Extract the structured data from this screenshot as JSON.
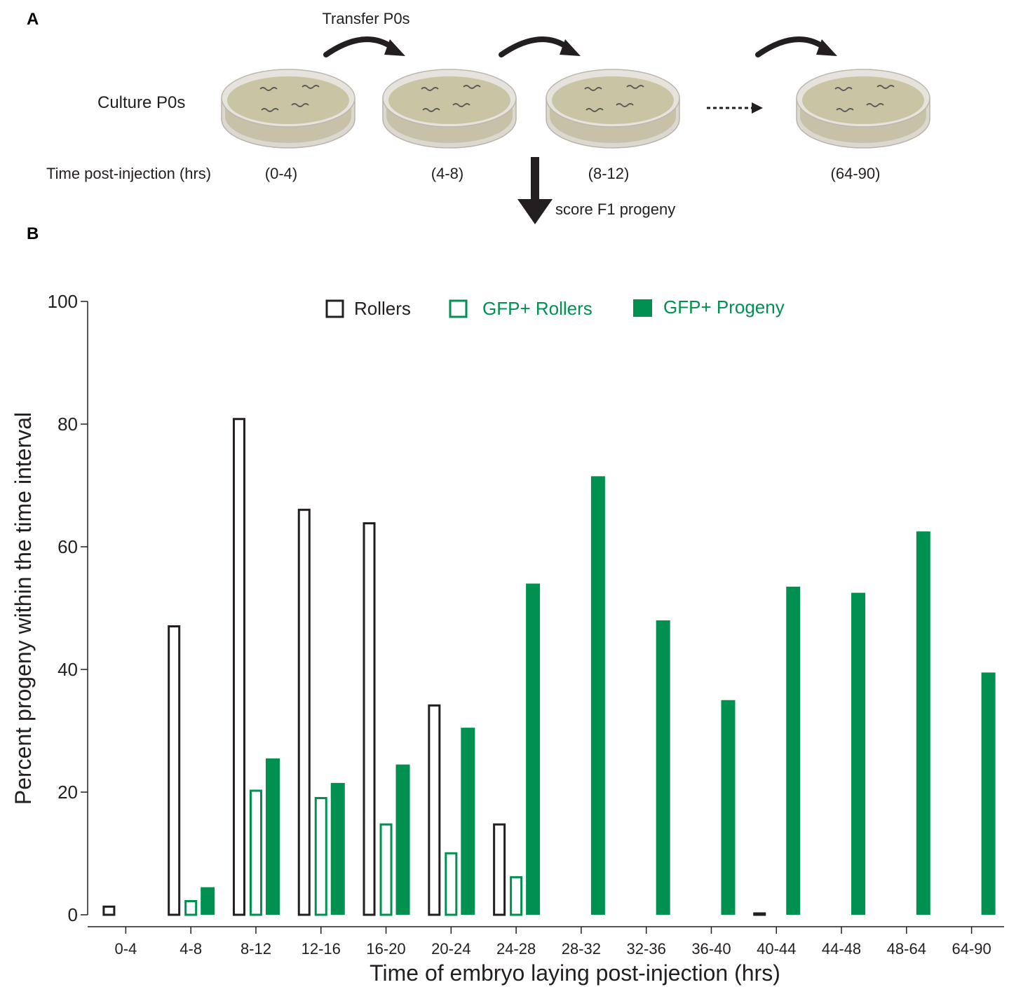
{
  "panel_a": {
    "letter": "A",
    "transfer_label": "Transfer P0s",
    "culture_label": "Culture P0s",
    "time_label": "Time post-injection (hrs)",
    "score_label": "score F1 progeny",
    "plates": [
      {
        "interval": "(0-4)"
      },
      {
        "interval": "(4-8)"
      },
      {
        "interval": "(8-12)"
      },
      {
        "interval": "(64-90)"
      }
    ]
  },
  "panel_b": {
    "letter": "B"
  },
  "colors": {
    "black": "#231f20",
    "green": "#009150",
    "plate_agar": "#c9c5a4",
    "plate_rim": "#e6e2dc"
  },
  "chart_data": {
    "type": "bar",
    "xlabel": "Time of embryo laying post-injection (hrs)",
    "ylabel": "Percent progeny within the time interval",
    "ylim": [
      0,
      100
    ],
    "yticks": [
      0,
      20,
      40,
      60,
      80,
      100
    ],
    "legend_position": "top",
    "grid": false,
    "categories": [
      "0-4",
      "4-8",
      "8-12",
      "12-16",
      "16-20",
      "20-24",
      "24-28",
      "28-32",
      "32-36",
      "36-40",
      "40-44",
      "44-48",
      "48-64",
      "64-90"
    ],
    "series": [
      {
        "name": "Rollers",
        "style": "outline",
        "color": "#231f20",
        "values": [
          1.5,
          47.2,
          81,
          66.2,
          64,
          34.3,
          14.9,
          0,
          0,
          0,
          0.4,
          0,
          0,
          0
        ]
      },
      {
        "name": "GFP+ Rollers",
        "style": "outline",
        "color": "#009150",
        "values": [
          0,
          2.4,
          20.4,
          19.2,
          14.9,
          10.2,
          6.3,
          0,
          0,
          0,
          0,
          0,
          0,
          0
        ]
      },
      {
        "name": "GFP+ Progeny",
        "style": "filled",
        "color": "#009150",
        "values": [
          0,
          4.5,
          25.5,
          21.5,
          24.5,
          30.5,
          54,
          71.5,
          48,
          35,
          53.5,
          52.5,
          62.5,
          39.5
        ]
      }
    ]
  }
}
